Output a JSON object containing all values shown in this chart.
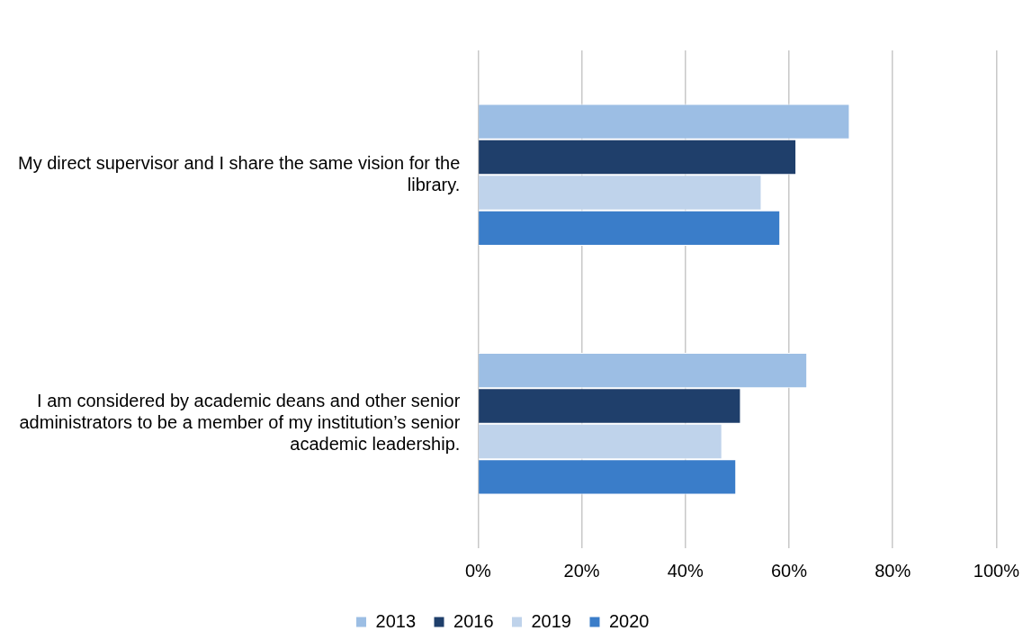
{
  "chart_data": {
    "type": "bar",
    "orientation": "horizontal",
    "categories": [
      "My direct supervisor and I share the same vision for the library.",
      "I am considered by academic deans and other senior administrators to be a member of my institution’s senior academic leadership."
    ],
    "series": [
      {
        "name": "2013",
        "color": "#9cbee4",
        "values": [
          71.7,
          63.5
        ]
      },
      {
        "name": "2016",
        "color": "#1f3f6b",
        "values": [
          61.4,
          50.7
        ]
      },
      {
        "name": "2019",
        "color": "#bfd3eb",
        "values": [
          54.7,
          47.1
        ]
      },
      {
        "name": "2020",
        "color": "#3a7dc9",
        "values": [
          58.3,
          49.8
        ]
      }
    ],
    "xlim": [
      0,
      100
    ],
    "xticks": [
      {
        "value": 0,
        "label": "0%"
      },
      {
        "value": 20,
        "label": "20%"
      },
      {
        "value": 40,
        "label": "40%"
      },
      {
        "value": 60,
        "label": "60%"
      },
      {
        "value": 80,
        "label": "80%"
      },
      {
        "value": 100,
        "label": "100%"
      }
    ],
    "grid": "x",
    "legend": "bottom"
  }
}
